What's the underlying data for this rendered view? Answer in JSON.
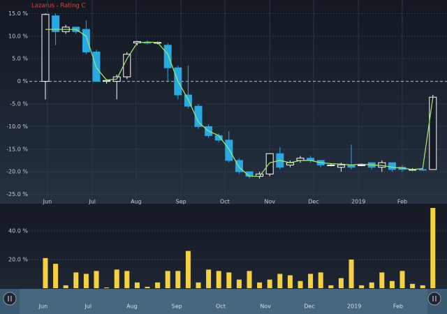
{
  "chart_data": [
    {
      "type": "candlestick",
      "title": "Lazarus - Rating C",
      "categories": [
        null,
        null,
        null,
        null,
        null,
        null,
        null,
        null,
        null,
        null,
        null,
        null,
        null,
        null,
        null,
        null,
        null,
        null,
        null,
        null,
        null,
        null,
        null,
        null,
        null,
        null,
        null,
        null,
        null,
        null,
        null,
        null,
        null,
        null,
        null,
        null,
        null,
        null,
        null
      ],
      "open": [
        0,
        14.5,
        11,
        12,
        11.5,
        6.5,
        0,
        0,
        1,
        8.5,
        8.6,
        8.5,
        8,
        3,
        -3,
        -5.5,
        -10,
        -12,
        -13,
        -17.5,
        -20,
        -21,
        -20.5,
        -16,
        -18.5,
        -17.5,
        -17,
        -17.5,
        -18.5,
        -19,
        -18.5,
        -18.5,
        -18,
        -19,
        -18,
        -19,
        -19.5,
        -19.5,
        -19.5
      ],
      "high": [
        15,
        15,
        12.5,
        12,
        13.5,
        7,
        0.5,
        1.5,
        6.5,
        9,
        9,
        8.8,
        8.5,
        3.5,
        3.5,
        -5,
        -9.5,
        -11.5,
        -11,
        -17,
        -20,
        -20,
        -16,
        -14.5,
        -17.5,
        -16.5,
        -16.5,
        -17.5,
        -18.2,
        -18,
        -14,
        -18.2,
        -18,
        -17.5,
        -18,
        -18.5,
        -19.2,
        -19.2,
        -3
      ],
      "low": [
        -4,
        8,
        10.5,
        10.5,
        6,
        0,
        -0.5,
        -4,
        0.5,
        8,
        8.2,
        8.2,
        0,
        -4,
        -6,
        -10.5,
        -12.5,
        -13.5,
        -18,
        -20.5,
        -21.5,
        -21.5,
        -21,
        -19.5,
        -19,
        -18,
        -18,
        -19,
        -18.8,
        -20,
        -19.5,
        -18.8,
        -19.5,
        -20,
        -20,
        -20,
        -19.8,
        -19.8,
        -19.5
      ],
      "close": [
        14.8,
        11,
        12,
        11,
        6.5,
        0,
        0.2,
        1,
        6,
        8.8,
        8.5,
        8.6,
        3,
        -3,
        -5.5,
        -10,
        -12,
        -13,
        -17.5,
        -20,
        -21,
        -20.5,
        -16,
        -19,
        -18,
        -17,
        -17.5,
        -18.5,
        -18.5,
        -18.5,
        -19,
        -18.5,
        -19,
        -18,
        -19.5,
        -19.5,
        -19.5,
        -19.6,
        -3.5
      ],
      "up_color": "#ffffff",
      "down_color": "#29a9e1",
      "line": {
        "color": "#9be36a",
        "values": [
          11.5,
          11.5,
          11.5,
          11.5,
          10,
          3,
          0.3,
          0.5,
          5,
          8.5,
          8.7,
          8.6,
          6,
          0,
          -4,
          -9,
          -11,
          -12,
          -15,
          -19,
          -21,
          -21,
          -18,
          -17.5,
          -18,
          -17.5,
          -17.5,
          -18,
          -18.2,
          -18.3,
          -18.5,
          -18.3,
          -18.5,
          -18.6,
          -19,
          -19.2,
          -19.5,
          -19.3,
          -3.5
        ]
      },
      "ylim": [
        -26,
        18
      ],
      "yticks": [
        {
          "value": 15,
          "label": "15.0 %"
        },
        {
          "value": 10,
          "label": "10.0 %"
        },
        {
          "value": 5,
          "label": "5.0 %"
        },
        {
          "value": 0,
          "label": "0 %"
        },
        {
          "value": -5,
          "label": "-5.0 %"
        },
        {
          "value": -10,
          "label": "-10.0 %"
        },
        {
          "value": -15,
          "label": "-15.0 %"
        },
        {
          "value": -20,
          "label": "-20.0 %"
        },
        {
          "value": -25,
          "label": "-25.0 %"
        }
      ],
      "xticks": [
        {
          "value": 0.2,
          "label": "Jun"
        },
        {
          "value": 4.6,
          "label": "Jul"
        },
        {
          "value": 8.9,
          "label": "Aug"
        },
        {
          "value": 13.3,
          "label": "Sep"
        },
        {
          "value": 17.6,
          "label": "Oct"
        },
        {
          "value": 22,
          "label": "Nov"
        },
        {
          "value": 26.3,
          "label": "Dec"
        },
        {
          "value": 30.7,
          "label": "2019"
        },
        {
          "value": 35,
          "label": "Feb"
        }
      ],
      "grid": true
    },
    {
      "type": "bar",
      "color": "#f5d142",
      "values": [
        21,
        17,
        2,
        11,
        10,
        12,
        0.5,
        13,
        12,
        4,
        1,
        4,
        12,
        12,
        26,
        4,
        13,
        12,
        11,
        6,
        12,
        4,
        6,
        10,
        9,
        5,
        10,
        11,
        2,
        7,
        20,
        2,
        4,
        11,
        5,
        12,
        3,
        2,
        56
      ],
      "ylim": [
        0,
        57
      ],
      "yticks": [
        {
          "value": 20,
          "label": "20.0 %"
        },
        {
          "value": 40,
          "label": "40.0 %"
        }
      ],
      "grid": true
    }
  ]
}
